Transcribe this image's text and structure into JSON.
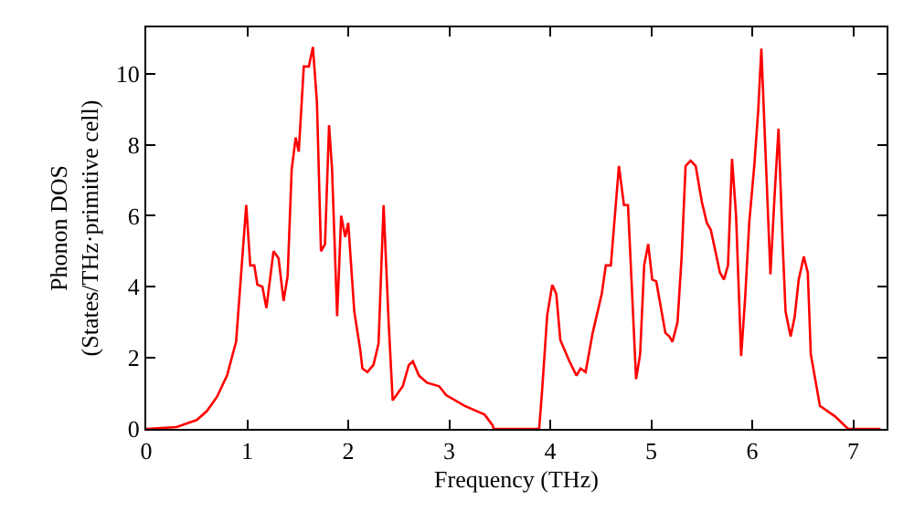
{
  "chart_data": {
    "type": "line",
    "xlabel": "Frequency (THz)",
    "ylabel": "Phonon DOS\n(States/THz·primitive cell)",
    "xlim": [
      0,
      7.33
    ],
    "ylim": [
      0,
      11.3
    ],
    "xticks": [
      0,
      1,
      2,
      3,
      4,
      5,
      6,
      7
    ],
    "yticks": [
      0,
      2,
      4,
      6,
      8,
      10
    ],
    "marker": "none",
    "line_style": "solid",
    "series": [
      {
        "color": "#ff0000",
        "x": [
          0,
          0.3,
          0.5,
          0.6,
          0.7,
          0.8,
          0.89,
          0.99,
          1.03,
          1.07,
          1.1,
          1.15,
          1.19,
          1.26,
          1.31,
          1.36,
          1.4,
          1.44,
          1.48,
          1.51,
          1.56,
          1.61,
          1.65,
          1.69,
          1.73,
          1.77,
          1.81,
          1.84,
          1.89,
          1.93,
          1.97,
          2.0,
          2.06,
          2.12,
          2.14,
          2.19,
          2.25,
          2.3,
          2.35,
          2.4,
          2.44,
          2.54,
          2.6,
          2.64,
          2.7,
          2.78,
          2.9,
          2.97,
          3.15,
          3.35,
          3.43,
          3.44,
          3.89,
          3.92,
          3.97,
          4.02,
          4.06,
          4.1,
          4.19,
          4.26,
          4.3,
          4.35,
          4.42,
          4.51,
          4.55,
          4.6,
          4.68,
          4.73,
          4.77,
          4.85,
          4.89,
          4.93,
          4.97,
          5.01,
          5.05,
          5.14,
          5.18,
          5.21,
          5.26,
          5.3,
          5.34,
          5.39,
          5.44,
          5.5,
          5.55,
          5.59,
          5.65,
          5.68,
          5.72,
          5.76,
          5.8,
          5.84,
          5.89,
          5.93,
          5.97,
          6.02,
          6.06,
          6.09,
          6.18,
          6.22,
          6.26,
          6.3,
          6.33,
          6.38,
          6.42,
          6.46,
          6.51,
          6.55,
          6.58,
          6.67,
          6.82,
          6.93,
          6.95,
          7.27
        ],
        "values": [
          0,
          0.05,
          0.25,
          0.5,
          0.9,
          1.5,
          2.46,
          6.3,
          4.6,
          4.6,
          4.06,
          4.0,
          3.4,
          5.0,
          4.8,
          3.6,
          4.3,
          7.3,
          8.2,
          7.8,
          10.2,
          10.2,
          10.75,
          9.2,
          5.0,
          5.2,
          8.55,
          7.3,
          3.17,
          6.0,
          5.4,
          5.8,
          3.3,
          2.2,
          1.7,
          1.6,
          1.8,
          2.4,
          6.3,
          3.0,
          0.8,
          1.2,
          1.8,
          1.9,
          1.5,
          1.3,
          1.2,
          0.95,
          0.65,
          0.4,
          0.1,
          0,
          0,
          1.1,
          3.2,
          4.05,
          3.8,
          2.5,
          1.9,
          1.5,
          1.7,
          1.6,
          2.7,
          3.8,
          4.6,
          4.6,
          7.4,
          6.3,
          6.3,
          1.4,
          2.1,
          4.6,
          5.2,
          4.2,
          4.15,
          2.7,
          2.6,
          2.45,
          3.0,
          4.8,
          7.4,
          7.55,
          7.4,
          6.4,
          5.8,
          5.6,
          4.8,
          4.4,
          4.2,
          4.6,
          7.6,
          6.0,
          2.05,
          3.7,
          5.8,
          7.4,
          9.0,
          10.7,
          4.35,
          6.5,
          8.45,
          5.3,
          3.3,
          2.6,
          3.15,
          4.2,
          4.85,
          4.4,
          2.1,
          0.65,
          0.35,
          0.05,
          0,
          0
        ]
      }
    ]
  }
}
